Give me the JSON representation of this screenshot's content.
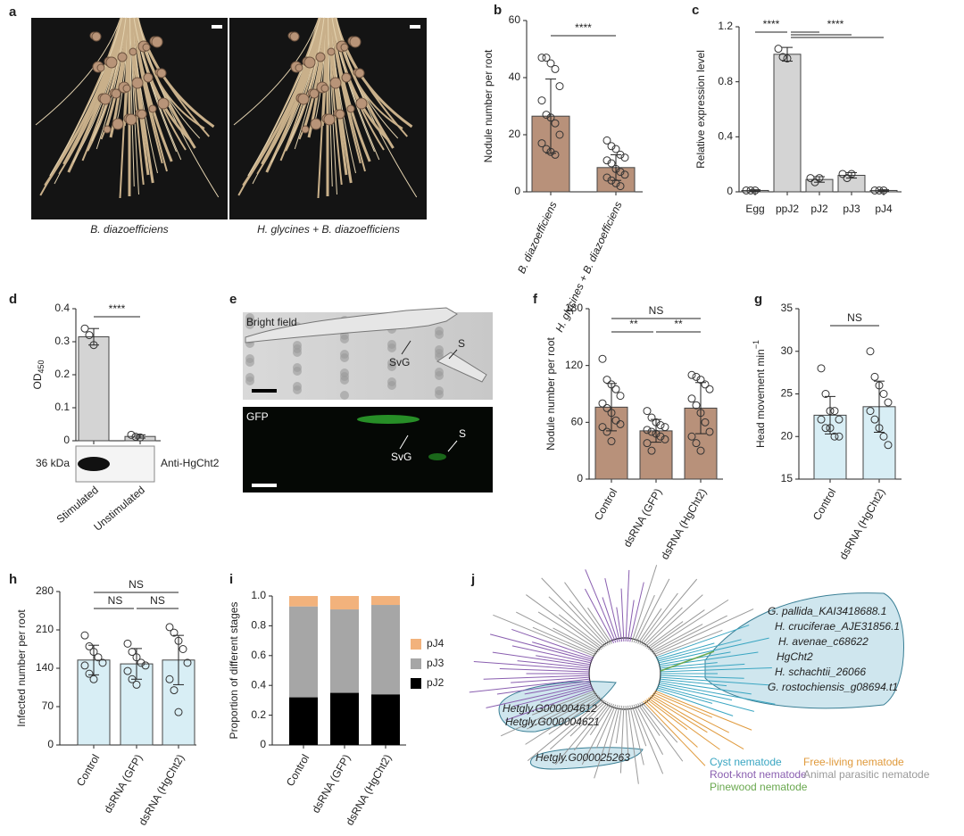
{
  "chart_data": [
    {
      "label": "b",
      "type": "bar",
      "ylabel": "Nodule number per root",
      "categories": [
        "B. diazoefficiens",
        "H. glycines + B. diazoefficiens"
      ],
      "values": [
        26.5,
        8.5
      ],
      "errors": [
        13,
        4.5
      ],
      "points": [
        [
          47,
          47,
          45,
          43,
          37,
          32,
          27,
          26,
          24,
          20,
          17,
          15,
          14,
          13
        ],
        [
          18,
          16,
          15,
          13,
          12,
          11,
          10,
          8,
          7,
          6,
          5,
          4,
          3,
          2
        ]
      ],
      "color": "#b8917a",
      "ylim": [
        0,
        60
      ],
      "yticks": [
        0,
        20,
        40,
        60
      ],
      "significance": [
        {
          "text": "****",
          "from": 0,
          "to": [
            1
          ]
        }
      ]
    },
    {
      "label": "c",
      "type": "bar",
      "ylabel": "Relative expression level",
      "categories": [
        "Egg",
        "ppJ2",
        "pJ2",
        "pJ3",
        "pJ4"
      ],
      "values": [
        0.01,
        1.0,
        0.09,
        0.12,
        0.01
      ],
      "errors": [
        0.005,
        0.05,
        0.02,
        0.02,
        0.005
      ],
      "points": [
        [
          0.01,
          0.01,
          0.01
        ],
        [
          1.04,
          0.98,
          0.97
        ],
        [
          0.1,
          0.07,
          0.1
        ],
        [
          0.13,
          0.1,
          0.13
        ],
        [
          0.01,
          0.01,
          0.01
        ]
      ],
      "color": "#d4d4d4",
      "ylim": [
        0,
        1.2
      ],
      "yticks": [
        0,
        0.4,
        0.8,
        1.2
      ],
      "significance": [
        {
          "text": "****",
          "from": 0,
          "to": [
            1
          ]
        },
        {
          "text": "****",
          "from": 1,
          "to": [
            2,
            3,
            4
          ]
        }
      ]
    },
    {
      "label": "d",
      "type": "bar",
      "ylabel": "OD",
      "ylabel_sub": "450",
      "categories": [
        "Stimulated",
        "Unstimulated"
      ],
      "values": [
        0.315,
        0.013
      ],
      "errors": [
        0.025,
        0.005
      ],
      "points": [
        [
          0.34,
          0.32,
          0.29
        ],
        [
          0.018,
          0.012,
          0.01
        ]
      ],
      "color": "#d4d4d4",
      "ylim": [
        0,
        0.4
      ],
      "yticks": [
        0,
        0.1,
        0.2,
        0.3,
        0.4
      ],
      "significance": [
        {
          "text": "****",
          "from": 0,
          "to": [
            1
          ]
        }
      ],
      "blot_size": "36 kDa",
      "antibody": "Anti-HgCht2"
    },
    {
      "label": "f",
      "type": "bar",
      "ylabel": "Nodule number per root",
      "categories": [
        "Control",
        "dsRNA (GFP)",
        "dsRNA (HgCht2)"
      ],
      "values": [
        76,
        51,
        75
      ],
      "errors": [
        25,
        12,
        27
      ],
      "points": [
        [
          127,
          105,
          100,
          95,
          88,
          80,
          75,
          70,
          62,
          58,
          55,
          50,
          40
        ],
        [
          72,
          65,
          60,
          57,
          55,
          52,
          50,
          48,
          45,
          42,
          38,
          30
        ],
        [
          110,
          108,
          105,
          100,
          95,
          85,
          78,
          70,
          60,
          50,
          45,
          38,
          30
        ]
      ],
      "color": "#b8917a",
      "ylim": [
        0,
        180
      ],
      "yticks": [
        0,
        60,
        120,
        180
      ],
      "significance": [
        {
          "text": "NS",
          "from": 0,
          "to": [
            2
          ]
        },
        {
          "text": "**",
          "from": 0,
          "to": [
            1
          ]
        },
        {
          "text": "**",
          "from": 1,
          "to": [
            2
          ]
        }
      ]
    },
    {
      "label": "g",
      "type": "bar",
      "ylabel": "Head movement min",
      "ylabel_sup": "−1",
      "categories": [
        "Control",
        "dsRNA (HgCht2)"
      ],
      "values": [
        22.5,
        23.5
      ],
      "errors": [
        2.2,
        3
      ],
      "points": [
        [
          28,
          25,
          23,
          23,
          22,
          22,
          21,
          21,
          20,
          20
        ],
        [
          30,
          27,
          26,
          25,
          24,
          23,
          22,
          21,
          20,
          19
        ]
      ],
      "color": "#d8eef5",
      "ylim": [
        15,
        35
      ],
      "yticks": [
        15,
        20,
        25,
        30,
        35
      ],
      "significance": [
        {
          "text": "NS",
          "from": 0,
          "to": [
            1
          ]
        }
      ]
    },
    {
      "label": "h",
      "type": "bar",
      "ylabel": "Infected number per root",
      "categories": [
        "Control",
        "dsRNA (GFP)",
        "dsRNA (HgCht2)"
      ],
      "values": [
        155,
        148,
        155
      ],
      "errors": [
        27,
        28,
        45
      ],
      "points": [
        [
          200,
          180,
          170,
          160,
          150,
          145,
          130,
          120
        ],
        [
          185,
          170,
          160,
          150,
          145,
          135,
          120,
          110
        ],
        [
          215,
          205,
          190,
          175,
          150,
          120,
          100,
          60
        ]
      ],
      "color": "#d8eef5",
      "ylim": [
        0,
        280
      ],
      "yticks": [
        0,
        70,
        140,
        210,
        280
      ],
      "significance": [
        {
          "text": "NS",
          "from": 0,
          "to": [
            2
          ]
        },
        {
          "text": "NS",
          "from": 0,
          "to": [
            1
          ]
        },
        {
          "text": "NS",
          "from": 1,
          "to": [
            2
          ]
        }
      ]
    },
    {
      "label": "i",
      "type": "stacked",
      "ylabel": "Proportion of different stages",
      "categories": [
        "Control",
        "dsRNA (GFP)",
        "dsRNA (HgCht2)"
      ],
      "series": [
        {
          "name": "pJ2",
          "color": "#000000",
          "values": [
            0.32,
            0.35,
            0.34
          ]
        },
        {
          "name": "pJ3",
          "color": "#a6a6a6",
          "values": [
            0.61,
            0.56,
            0.6
          ]
        },
        {
          "name": "pJ4",
          "color": "#f2b27c",
          "values": [
            0.07,
            0.09,
            0.06
          ]
        }
      ],
      "ylim": [
        0,
        1
      ],
      "yticks": [
        0,
        0.2,
        0.4,
        0.6,
        0.8,
        {
          "value": 1,
          "label": "1.0"
        }
      ]
    }
  ],
  "figure": {
    "a": {
      "label": "a",
      "captions": [
        "B. diazoefficiens",
        "H. glycines + B. diazoefficiens"
      ]
    },
    "e": {
      "label": "e",
      "top_title": "Bright field",
      "top_labels": [
        "SvG",
        "S"
      ],
      "bottom_title": "GFP",
      "bottom_labels": [
        "SvG",
        "S"
      ]
    },
    "j": {
      "label": "j",
      "cyst_genes": [
        "G. pallida_KAI3418688.1",
        "H. cruciferae_AJE31856.1",
        "H. avenae_c68622",
        "HgCht2",
        "H. schachtii_26066",
        "G. rostochiensis_g08694.t1"
      ],
      "other_genes": [
        "Hetgly.G000004612",
        "Hetgly.G000004621",
        "Hetgly.G000025263"
      ],
      "legend": [
        {
          "name": "Cyst nematode",
          "color": "#3aa6c2"
        },
        {
          "name": "Root-knot nematode",
          "color": "#8a5fb0"
        },
        {
          "name": "Pinewood nematode",
          "color": "#6aa84f"
        },
        {
          "name": "Free-living nematode",
          "color": "#e09a3c"
        },
        {
          "name": "Animal parasitic nematode",
          "color": "#999999"
        }
      ]
    }
  }
}
